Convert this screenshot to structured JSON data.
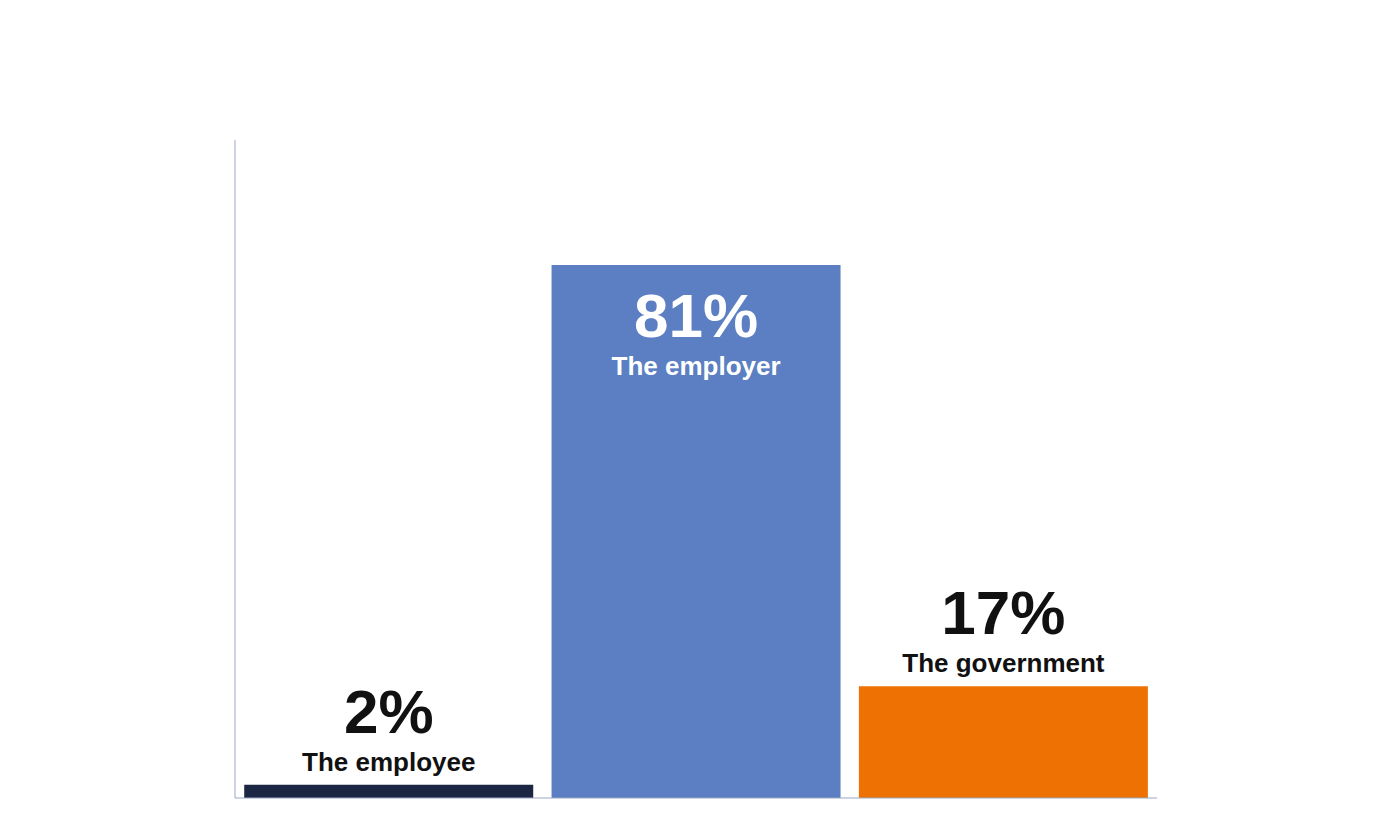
{
  "chart_data": {
    "type": "bar",
    "categories": [
      "The employee",
      "The employer",
      "The government"
    ],
    "values": [
      2,
      81,
      17
    ],
    "value_labels": [
      "2%",
      "81%",
      "17%"
    ],
    "colors": [
      "#1b2642",
      "#5b7fc2",
      "#ee7203"
    ],
    "ylim": [
      0,
      100
    ],
    "yticks": [
      0,
      100
    ],
    "data_labels": true,
    "tick_labels": false,
    "grid": false
  }
}
